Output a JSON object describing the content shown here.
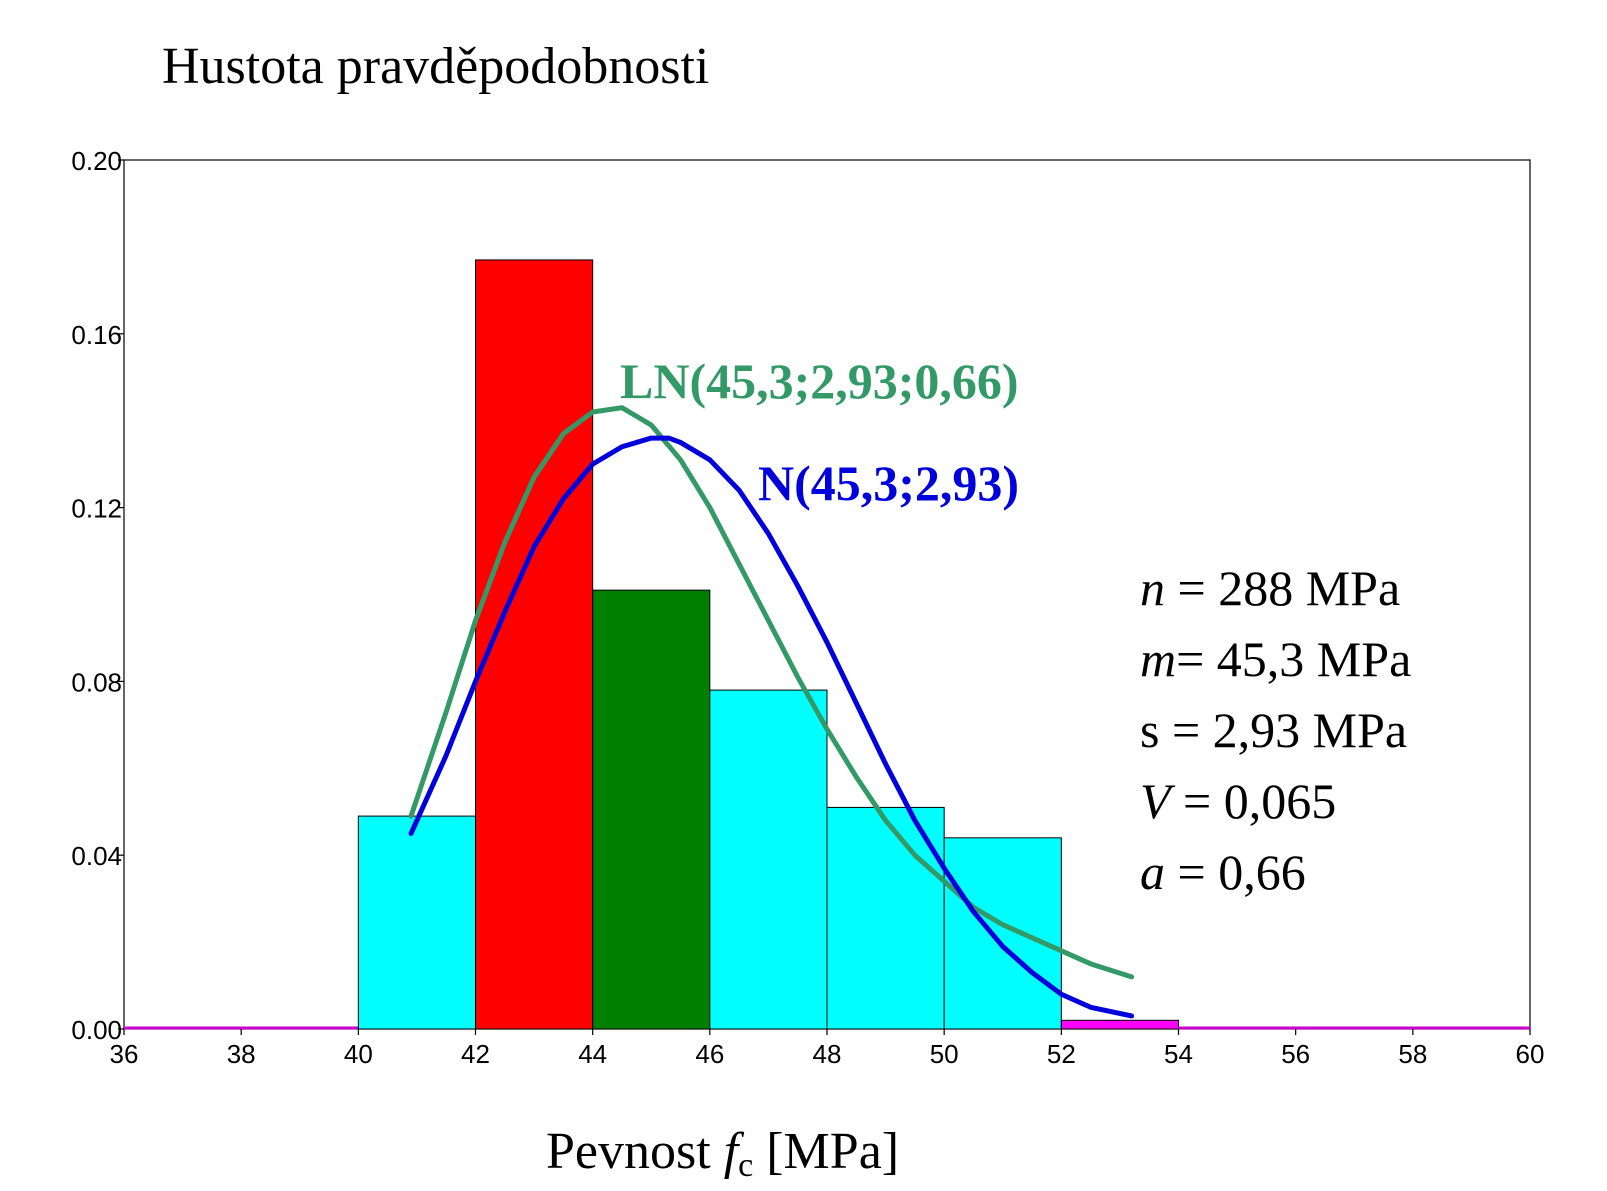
{
  "chart_data": {
    "type": "bar",
    "title": "Hustota pravděpodobnosti",
    "xlabel": {
      "main": "Pevnost ",
      "symbol": "f",
      "subscript": "c",
      "unit": " [MPa]"
    },
    "xlim": [
      36,
      60
    ],
    "ylim": [
      0,
      0.2
    ],
    "xticks": [
      "36",
      "38",
      "40",
      "42",
      "44",
      "46",
      "48",
      "50",
      "52",
      "54",
      "56",
      "58",
      "60"
    ],
    "yticks": [
      "0.00",
      "0.04",
      "0.08",
      "0.12",
      "0.16",
      "0.20"
    ],
    "bins": [
      {
        "x0": 36,
        "x1": 40,
        "value": 0.0,
        "color": "#cc00cc"
      },
      {
        "x0": 40,
        "x1": 42,
        "value": 0.049,
        "color": "#00ffff"
      },
      {
        "x0": 42,
        "x1": 44,
        "value": 0.177,
        "color": "#ff0000"
      },
      {
        "x0": 44,
        "x1": 46,
        "value": 0.101,
        "color": "#008000"
      },
      {
        "x0": 46,
        "x1": 48,
        "value": 0.078,
        "color": "#00ffff"
      },
      {
        "x0": 48,
        "x1": 50,
        "value": 0.051,
        "color": "#00ffff"
      },
      {
        "x0": 50,
        "x1": 52,
        "value": 0.044,
        "color": "#00ffff"
      },
      {
        "x0": 52,
        "x1": 54,
        "value": 0.002,
        "color": "#ff00ff"
      },
      {
        "x0": 54,
        "x1": 60,
        "value": 0.0,
        "color": "#cc00cc"
      }
    ],
    "series": [
      {
        "name": "LN(45,3;2,93;0,66)",
        "color": "#339966",
        "x": [
          40.9,
          41.5,
          42.0,
          42.5,
          43.0,
          43.5,
          44.0,
          44.5,
          45.0,
          45.5,
          46.0,
          46.5,
          47.0,
          47.5,
          48.0,
          48.5,
          49.0,
          49.5,
          50.0,
          50.5,
          51.0,
          51.5,
          52.0,
          52.5,
          53.2
        ],
        "y": [
          0.049,
          0.073,
          0.094,
          0.112,
          0.127,
          0.137,
          0.142,
          0.143,
          0.139,
          0.131,
          0.12,
          0.107,
          0.094,
          0.081,
          0.069,
          0.058,
          0.048,
          0.04,
          0.034,
          0.028,
          0.024,
          0.021,
          0.018,
          0.015,
          0.012
        ]
      },
      {
        "name": "N(45,3;2,93)",
        "color": "#0000dd",
        "x": [
          40.9,
          41.5,
          42.0,
          42.5,
          43.0,
          43.5,
          44.0,
          44.5,
          45.0,
          45.3,
          45.5,
          46.0,
          46.5,
          47.0,
          47.5,
          48.0,
          48.5,
          49.0,
          49.5,
          50.0,
          50.5,
          51.0,
          51.5,
          52.0,
          52.5,
          53.2
        ],
        "y": [
          0.045,
          0.063,
          0.08,
          0.096,
          0.111,
          0.122,
          0.13,
          0.134,
          0.136,
          0.136,
          0.135,
          0.131,
          0.124,
          0.114,
          0.102,
          0.089,
          0.075,
          0.061,
          0.048,
          0.037,
          0.027,
          0.019,
          0.013,
          0.008,
          0.005,
          0.003
        ]
      }
    ],
    "annotations": {
      "ln_label": "LN(45,3;2,93;0,66)",
      "n_label": "N(45,3;2,93)"
    },
    "stats": [
      {
        "symbol": "n",
        "italic": true,
        "text": " = 288 MPa"
      },
      {
        "symbol": "m",
        "italic": true,
        "text": "= 45,3 MPa"
      },
      {
        "symbol": "s",
        "italic": false,
        "text": " = 2,93 MPa"
      },
      {
        "symbol": "V",
        "italic": true,
        "text": " = 0,065"
      },
      {
        "symbol": "a",
        "italic": true,
        "text": " = 0,66"
      }
    ]
  }
}
